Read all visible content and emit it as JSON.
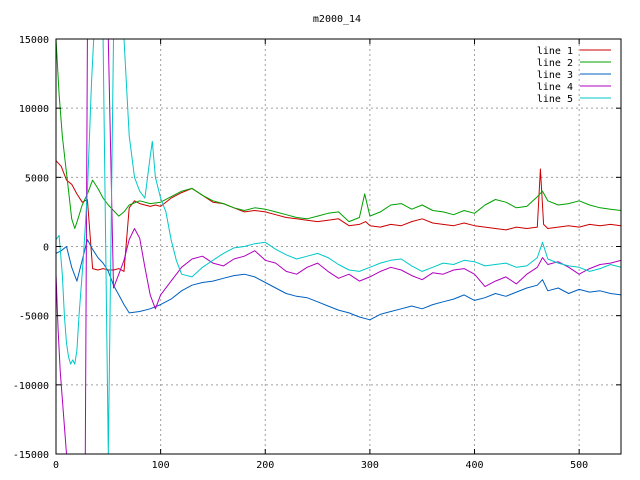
{
  "chart_data": {
    "type": "line",
    "title": "m2000_14",
    "xlabel": "",
    "ylabel": "",
    "xlim": [
      0,
      540
    ],
    "ylim": [
      -15000,
      15000
    ],
    "xticks": [
      0,
      100,
      200,
      300,
      400,
      500
    ],
    "yticks": [
      -15000,
      -10000,
      -5000,
      0,
      5000,
      10000,
      15000
    ],
    "grid": true,
    "legend_position": "top-right",
    "series": [
      {
        "name": "line 1",
        "color": "#cc0000",
        "x": [
          0,
          5,
          10,
          15,
          20,
          25,
          30,
          35,
          40,
          45,
          50,
          55,
          60,
          65,
          70,
          75,
          80,
          85,
          90,
          95,
          100,
          110,
          120,
          130,
          140,
          150,
          160,
          170,
          180,
          190,
          200,
          210,
          220,
          230,
          240,
          250,
          260,
          270,
          280,
          290,
          296,
          300,
          310,
          320,
          330,
          340,
          350,
          360,
          370,
          380,
          390,
          400,
          410,
          420,
          430,
          440,
          450,
          460,
          463,
          466,
          470,
          480,
          490,
          500,
          510,
          520,
          530,
          540
        ],
        "y": [
          6200,
          5800,
          4800,
          4500,
          3800,
          3200,
          3400,
          -1600,
          -1700,
          -1600,
          -1700,
          -1700,
          -1600,
          -1800,
          2800,
          3300,
          3100,
          3000,
          2900,
          3000,
          2900,
          3500,
          3900,
          4200,
          3700,
          3200,
          3100,
          2800,
          2500,
          2600,
          2500,
          2300,
          2100,
          2000,
          1900,
          1800,
          1900,
          2000,
          1500,
          1600,
          1800,
          1500,
          1400,
          1600,
          1500,
          1800,
          2000,
          1700,
          1600,
          1500,
          1700,
          1500,
          1400,
          1300,
          1200,
          1400,
          1300,
          1400,
          5600,
          1600,
          1300,
          1400,
          1500,
          1400,
          1600,
          1500,
          1600,
          1500
        ]
      },
      {
        "name": "line 2",
        "color": "#00a000",
        "x": [
          0,
          3,
          6,
          9,
          12,
          15,
          18,
          21,
          25,
          30,
          35,
          40,
          45,
          50,
          55,
          60,
          65,
          70,
          80,
          90,
          100,
          110,
          120,
          130,
          140,
          150,
          160,
          170,
          180,
          190,
          200,
          210,
          220,
          230,
          240,
          250,
          260,
          270,
          280,
          290,
          295,
          300,
          310,
          320,
          330,
          340,
          350,
          360,
          370,
          380,
          390,
          400,
          410,
          420,
          430,
          440,
          450,
          460,
          465,
          470,
          480,
          490,
          500,
          510,
          520,
          530,
          540
        ],
        "y": [
          15000,
          11000,
          8000,
          6000,
          4000,
          2000,
          1300,
          2000,
          3000,
          3800,
          4800,
          4200,
          3500,
          3000,
          2600,
          2200,
          2500,
          3000,
          3300,
          3100,
          3200,
          3600,
          4000,
          4200,
          3700,
          3300,
          3100,
          2800,
          2600,
          2800,
          2700,
          2500,
          2300,
          2100,
          2000,
          2200,
          2400,
          2500,
          1800,
          2100,
          3800,
          2200,
          2500,
          3000,
          3100,
          2700,
          3000,
          2600,
          2500,
          2300,
          2600,
          2400,
          3000,
          3400,
          3200,
          2800,
          2900,
          3600,
          4000,
          3300,
          3000,
          3100,
          3300,
          3000,
          2800,
          2700,
          2600
        ]
      },
      {
        "name": "line 3",
        "color": "#0060c0",
        "x": [
          0,
          5,
          10,
          15,
          20,
          25,
          30,
          35,
          40,
          45,
          50,
          55,
          60,
          65,
          70,
          80,
          90,
          100,
          110,
          120,
          130,
          140,
          150,
          160,
          170,
          180,
          190,
          200,
          210,
          220,
          230,
          240,
          250,
          260,
          270,
          280,
          290,
          300,
          310,
          320,
          330,
          340,
          350,
          360,
          370,
          380,
          390,
          400,
          410,
          420,
          430,
          440,
          450,
          460,
          465,
          470,
          480,
          490,
          500,
          510,
          520,
          530,
          540
        ],
        "y": [
          -500,
          -300,
          0,
          -1500,
          -2500,
          -1000,
          500,
          -200,
          -800,
          -1200,
          -1800,
          -2800,
          -3500,
          -4200,
          -4800,
          -4700,
          -4500,
          -4200,
          -3800,
          -3200,
          -2800,
          -2600,
          -2500,
          -2300,
          -2100,
          -2000,
          -2200,
          -2600,
          -3000,
          -3400,
          -3600,
          -3700,
          -4000,
          -4300,
          -4600,
          -4800,
          -5100,
          -5300,
          -4900,
          -4700,
          -4500,
          -4300,
          -4500,
          -4200,
          -4000,
          -3800,
          -3500,
          -3900,
          -3700,
          -3400,
          -3600,
          -3300,
          -3000,
          -2800,
          -2400,
          -3200,
          -3000,
          -3400,
          -3100,
          -3300,
          -3200,
          -3400,
          -3500
        ]
      },
      {
        "name": "line 4",
        "color": "#b000c0",
        "x": [
          0,
          2,
          4,
          6,
          8,
          10,
          12,
          14,
          16,
          18,
          20,
          22,
          24,
          26,
          28,
          30,
          32,
          34,
          36,
          38,
          40,
          45,
          50,
          55,
          60,
          65,
          70,
          75,
          80,
          85,
          90,
          95,
          100,
          110,
          120,
          130,
          140,
          150,
          160,
          170,
          180,
          190,
          200,
          210,
          220,
          230,
          240,
          250,
          260,
          270,
          280,
          290,
          300,
          310,
          320,
          330,
          340,
          350,
          360,
          370,
          380,
          390,
          400,
          410,
          420,
          430,
          440,
          450,
          460,
          465,
          470,
          480,
          490,
          500,
          510,
          520,
          530,
          540
        ],
        "y": [
          -2000,
          -6000,
          -9000,
          -11000,
          -13000,
          -15000,
          -15000,
          -15000,
          -15000,
          -15000,
          -15000,
          -15000,
          -15000,
          -15000,
          -15000,
          15000,
          15000,
          15000,
          15000,
          15000,
          15000,
          15000,
          15000,
          -3000,
          -2000,
          -1000,
          500,
          1300,
          600,
          -1500,
          -3500,
          -4500,
          -3500,
          -2500,
          -1500,
          -900,
          -700,
          -1200,
          -1400,
          -900,
          -700,
          -300,
          -1000,
          -1200,
          -1800,
          -2000,
          -1500,
          -1200,
          -1800,
          -2300,
          -2000,
          -2500,
          -2200,
          -1800,
          -1500,
          -1700,
          -2100,
          -2400,
          -1900,
          -2000,
          -1700,
          -1600,
          -2000,
          -2900,
          -2500,
          -2200,
          -2700,
          -2000,
          -1500,
          -800,
          -1300,
          -1100,
          -1500,
          -2000,
          -1600,
          -1300,
          -1200,
          -1000
        ]
      },
      {
        "name": "line 5",
        "color": "#00c8c8",
        "x": [
          0,
          3,
          6,
          8,
          10,
          12,
          14,
          16,
          18,
          20,
          22,
          24,
          26,
          28,
          30,
          32,
          34,
          36,
          38,
          40,
          45,
          50,
          55,
          60,
          65,
          70,
          75,
          80,
          85,
          90,
          92,
          95,
          100,
          105,
          110,
          115,
          120,
          130,
          140,
          150,
          160,
          170,
          180,
          190,
          200,
          210,
          220,
          230,
          240,
          250,
          260,
          270,
          280,
          290,
          300,
          310,
          320,
          330,
          340,
          350,
          360,
          370,
          380,
          390,
          400,
          410,
          420,
          430,
          440,
          450,
          460,
          465,
          470,
          480,
          490,
          500,
          510,
          520,
          530,
          540
        ],
        "y": [
          500,
          800,
          -2000,
          -5000,
          -7000,
          -8000,
          -8500,
          -8200,
          -8500,
          -7500,
          -5000,
          -3000,
          -1000,
          1500,
          4000,
          8000,
          12000,
          15000,
          15000,
          15000,
          15000,
          -15000,
          15000,
          15000,
          15000,
          8000,
          5000,
          4000,
          3500,
          6500,
          7600,
          5000,
          3500,
          2500,
          500,
          -1000,
          -2000,
          -2200,
          -1500,
          -1000,
          -500,
          -100,
          0,
          200,
          300,
          -200,
          -600,
          -900,
          -700,
          -500,
          -800,
          -1300,
          -1700,
          -1800,
          -1500,
          -1200,
          -1000,
          -900,
          -1400,
          -1800,
          -1500,
          -1200,
          -1300,
          -1000,
          -1100,
          -1400,
          -1300,
          -1200,
          -1500,
          -1400,
          -800,
          300,
          -900,
          -1200,
          -1400,
          -1500,
          -1800,
          -1600,
          -1300,
          -1500
        ]
      }
    ]
  }
}
